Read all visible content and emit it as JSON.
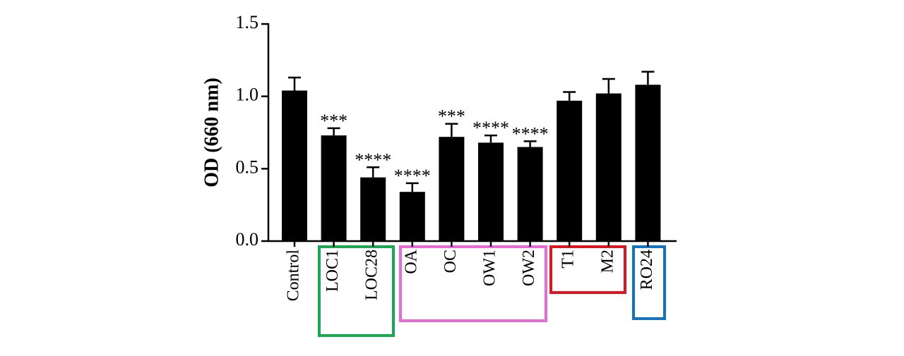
{
  "chart_data": {
    "type": "bar",
    "y_label": "OD (660 nm)",
    "categories": [
      "Control",
      "LOC1",
      "LOC28",
      "OA",
      "OC",
      "OW1",
      "OW2",
      "T1",
      "M2",
      "RO24"
    ],
    "values": [
      1.04,
      0.73,
      0.44,
      0.34,
      0.72,
      0.68,
      0.65,
      0.97,
      1.02,
      1.08
    ],
    "errors": [
      0.09,
      0.05,
      0.07,
      0.06,
      0.09,
      0.05,
      0.04,
      0.06,
      0.1,
      0.09
    ],
    "significance": [
      null,
      "***",
      "****",
      "****",
      "***",
      "****",
      "****",
      null,
      null,
      null
    ],
    "color": "#000000",
    "ylim": [
      0,
      1.5
    ],
    "yticks": [
      {
        "value": 0,
        "label": "0.0"
      },
      0.5,
      {
        "value": 1,
        "label": "1.0"
      },
      1.5
    ]
  }
}
